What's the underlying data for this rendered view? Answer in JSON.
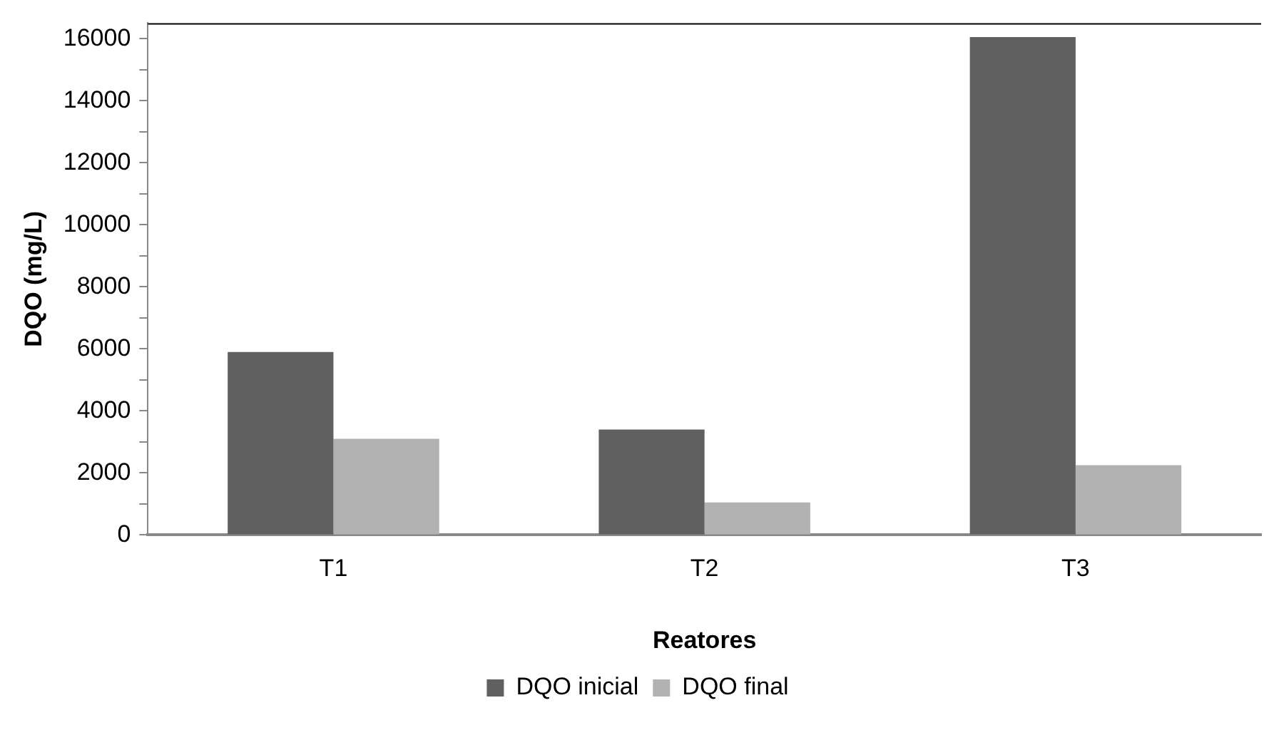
{
  "chart_data": {
    "type": "bar",
    "xlabel": "Reatores",
    "ylabel": "DQO (mg/L)",
    "categories": [
      "T1",
      "T2",
      "T3"
    ],
    "series": [
      {
        "name": "DQO inicial",
        "color": "#606060",
        "values": [
          5900,
          3400,
          16050
        ]
      },
      {
        "name": "DQO final",
        "color": "#b2b2b2",
        "values": [
          3100,
          1050,
          2250
        ]
      }
    ],
    "ylim": [
      0,
      16500
    ],
    "yticks": [
      0,
      {
        "value": 1000,
        "label": null
      },
      2000,
      {
        "value": 3000,
        "label": null
      },
      4000,
      {
        "value": 5000,
        "label": null
      },
      6000,
      {
        "value": 7000,
        "label": null
      },
      8000,
      {
        "value": 9000,
        "label": null
      },
      10000,
      {
        "value": 11000,
        "label": null
      },
      12000,
      {
        "value": 13000,
        "label": null
      },
      14000,
      {
        "value": 15000,
        "label": null
      },
      16000
    ],
    "grid": false,
    "legend": "bottom"
  }
}
